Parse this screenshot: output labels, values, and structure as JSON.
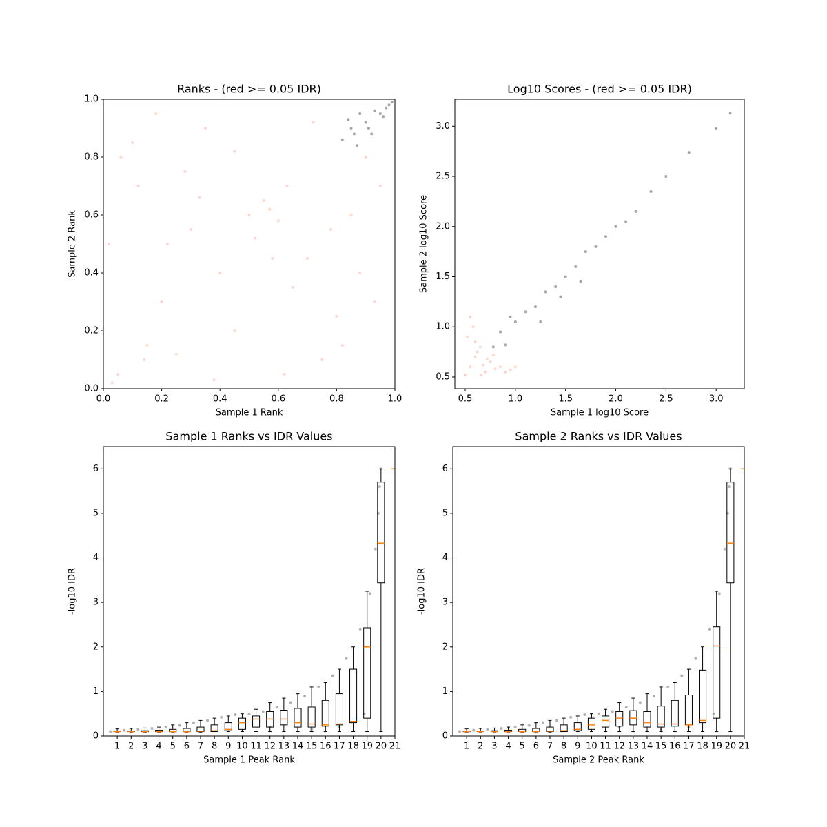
{
  "chart_data": [
    {
      "type": "scatter",
      "title": "Ranks - (red >= 0.05 IDR)",
      "xlabel": "Sample 1 Rank",
      "ylabel": "Sample 2 Rank",
      "xlim": [
        0,
        1
      ],
      "ylim": [
        0,
        1
      ],
      "xticks": [
        {
          "value": 0,
          "label": "0.0"
        },
        0.2,
        0.4,
        0.6,
        0.8,
        {
          "value": 1,
          "label": "1.0"
        }
      ],
      "yticks": [
        {
          "value": 0,
          "label": "0.0"
        },
        0.2,
        0.4,
        0.6,
        0.8,
        {
          "value": 1,
          "label": "1.0"
        }
      ],
      "series": [
        {
          "color": "#fa8c6e",
          "x": [
            0.03,
            0.05,
            0.02,
            0.06,
            0.12,
            0.15,
            0.2,
            0.25,
            0.3,
            0.35,
            0.4,
            0.45,
            0.5,
            0.55,
            0.6,
            0.62,
            0.65,
            0.7,
            0.75,
            0.8,
            0.85,
            0.9,
            0.93,
            0.1,
            0.18,
            0.22,
            0.28,
            0.33,
            0.38,
            0.52,
            0.57,
            0.58,
            0.63,
            0.72,
            0.78,
            0.82,
            0.88,
            0.95,
            0.14,
            0.45
          ],
          "values": [
            0.02,
            0.05,
            0.5,
            0.8,
            0.7,
            0.15,
            0.3,
            0.12,
            0.55,
            0.9,
            0.4,
            0.2,
            0.6,
            0.65,
            0.58,
            0.05,
            0.35,
            0.45,
            0.1,
            0.25,
            0.6,
            0.8,
            0.3,
            0.85,
            0.95,
            0.5,
            0.75,
            0.66,
            0.03,
            0.52,
            0.62,
            0.45,
            0.7,
            0.92,
            0.55,
            0.15,
            0.4,
            0.7,
            0.1,
            0.82
          ]
        },
        {
          "color": "#000000",
          "x": [
            0.82,
            0.85,
            0.87,
            0.9,
            0.92,
            0.95,
            0.97,
            0.99,
            0.84,
            0.88,
            0.91,
            0.93,
            0.96,
            0.86,
            0.98
          ],
          "values": [
            0.86,
            0.9,
            0.84,
            0.92,
            0.88,
            0.95,
            0.97,
            0.99,
            0.93,
            0.95,
            0.9,
            0.96,
            0.94,
            0.88,
            0.98
          ]
        }
      ]
    },
    {
      "type": "scatter",
      "title": "Log10 Scores - (red >= 0.05 IDR)",
      "xlabel": "Sample 1 log10 Score",
      "ylabel": "Sample 2 log10 Score",
      "xlim": [
        0.397,
        3.28
      ],
      "ylim": [
        0.383,
        3.27
      ],
      "xticks": [
        0.5,
        {
          "value": 1,
          "label": "1.0"
        },
        1.5,
        {
          "value": 2,
          "label": "2.0"
        },
        2.5,
        {
          "value": 3,
          "label": "3.0"
        }
      ],
      "yticks": [
        0.5,
        {
          "value": 1,
          "label": "1.0"
        },
        1.5,
        {
          "value": 2,
          "label": "2.0"
        },
        2.5,
        {
          "value": 3,
          "label": "3.0"
        }
      ],
      "series": [
        {
          "color": "#fa8c6e",
          "x": [
            0.5,
            0.55,
            0.6,
            0.65,
            0.7,
            0.75,
            0.8,
            0.85,
            0.9,
            0.52,
            0.58,
            0.62,
            0.68,
            0.72,
            0.78,
            0.95,
            1.0,
            0.55,
            0.6,
            0.66
          ],
          "values": [
            0.52,
            0.6,
            0.7,
            0.8,
            0.55,
            0.65,
            0.58,
            0.6,
            0.55,
            0.9,
            1.0,
            0.75,
            0.62,
            0.68,
            0.72,
            0.57,
            0.6,
            1.1,
            0.85,
            0.52
          ]
        },
        {
          "color": "#000000",
          "x": [
            0.78,
            0.85,
            0.9,
            1.0,
            1.1,
            1.2,
            1.3,
            1.4,
            1.5,
            1.6,
            1.7,
            1.8,
            1.9,
            2.0,
            2.1,
            2.2,
            2.35,
            2.5,
            2.73,
            3.0,
            3.14,
            0.95,
            1.25,
            1.45,
            1.65
          ],
          "values": [
            0.8,
            0.95,
            0.82,
            1.05,
            1.15,
            1.2,
            1.35,
            1.4,
            1.5,
            1.6,
            1.75,
            1.8,
            1.9,
            2.0,
            2.05,
            2.15,
            2.35,
            2.5,
            2.74,
            2.98,
            3.13,
            1.1,
            1.05,
            1.3,
            1.45
          ]
        }
      ]
    },
    {
      "type": "box",
      "title": "Sample 1 Ranks vs IDR Values",
      "xlabel": "Sample 1 Peak Rank",
      "ylabel": "-log10 IDR",
      "xlim": [
        0,
        21
      ],
      "ylim": [
        0,
        6.5
      ],
      "xticks": [
        1,
        2,
        3,
        4,
        5,
        6,
        7,
        8,
        9,
        10,
        11,
        12,
        13,
        14,
        15,
        16,
        17,
        18,
        19,
        20,
        21
      ],
      "yticks": [
        0,
        1,
        2,
        3,
        4,
        5,
        6
      ],
      "median_color": "#ff7f0e",
      "x": [
        1,
        2,
        3,
        4,
        5,
        6,
        7,
        8,
        9,
        10,
        11,
        12,
        13,
        14,
        15,
        16,
        17,
        18,
        19,
        20,
        21
      ],
      "whislo": [
        0.09,
        0.09,
        0.09,
        0.09,
        0.09,
        0.09,
        0.09,
        0.1,
        0.1,
        0.1,
        0.1,
        0.1,
        0.1,
        0.1,
        0.1,
        0.1,
        0.1,
        0.1,
        0.1,
        0.1,
        6
      ],
      "q1": [
        0.1,
        0.1,
        0.1,
        0.1,
        0.1,
        0.1,
        0.1,
        0.1,
        0.12,
        0.15,
        0.2,
        0.2,
        0.25,
        0.2,
        0.2,
        0.22,
        0.25,
        0.3,
        0.4,
        3.44,
        6
      ],
      "median": [
        0.1,
        0.1,
        0.1,
        0.1,
        0.1,
        0.1,
        0.11,
        0.12,
        0.15,
        0.3,
        0.38,
        0.38,
        0.38,
        0.3,
        0.27,
        0.25,
        0.27,
        0.33,
        2.0,
        4.33,
        6
      ],
      "q3": [
        0.11,
        0.11,
        0.12,
        0.13,
        0.15,
        0.17,
        0.2,
        0.25,
        0.3,
        0.4,
        0.45,
        0.55,
        0.58,
        0.62,
        0.65,
        0.8,
        0.95,
        1.5,
        2.43,
        5.7,
        6
      ],
      "whishi": [
        0.16,
        0.17,
        0.18,
        0.2,
        0.25,
        0.3,
        0.35,
        0.4,
        0.45,
        0.5,
        0.6,
        0.75,
        0.85,
        0.95,
        1.1,
        1.2,
        1.5,
        2.0,
        3.25,
        6.0,
        6
      ],
      "scatter": {
        "color": "#000000",
        "x": [
          0.5,
          1.5,
          2.5,
          3.5,
          4.5,
          5.5,
          6.5,
          7.5,
          8.5,
          9.5,
          10.5,
          11.5,
          12.5,
          13.5,
          14.5,
          15.5,
          16.5,
          17.5,
          18.5,
          19.2,
          19.6,
          19.8,
          19.9,
          20.0,
          12,
          15,
          17,
          18.8
        ],
        "values": [
          0.1,
          0.13,
          0.15,
          0.17,
          0.2,
          0.24,
          0.3,
          0.35,
          0.42,
          0.48,
          0.5,
          0.55,
          0.65,
          0.75,
          0.9,
          1.1,
          1.35,
          1.75,
          2.4,
          3.2,
          4.2,
          5.0,
          5.6,
          6.0,
          0.2,
          0.15,
          0.2,
          0.5
        ]
      }
    },
    {
      "type": "box",
      "title": "Sample 2 Ranks vs IDR Values",
      "xlabel": "Sample 2 Peak Rank",
      "ylabel": "-log10 IDR",
      "xlim": [
        0,
        21
      ],
      "ylim": [
        0,
        6.5
      ],
      "xticks": [
        1,
        2,
        3,
        4,
        5,
        6,
        7,
        8,
        9,
        10,
        11,
        12,
        13,
        14,
        15,
        16,
        17,
        18,
        19,
        20,
        21
      ],
      "yticks": [
        0,
        1,
        2,
        3,
        4,
        5,
        6
      ],
      "median_color": "#ff7f0e",
      "x": [
        1,
        2,
        3,
        4,
        5,
        6,
        7,
        8,
        9,
        10,
        11,
        12,
        13,
        14,
        15,
        16,
        17,
        18,
        19,
        20,
        21
      ],
      "whislo": [
        0.09,
        0.09,
        0.09,
        0.09,
        0.09,
        0.09,
        0.09,
        0.1,
        0.1,
        0.1,
        0.1,
        0.1,
        0.1,
        0.1,
        0.1,
        0.1,
        0.1,
        0.1,
        0.1,
        0.1,
        6
      ],
      "q1": [
        0.1,
        0.1,
        0.1,
        0.1,
        0.1,
        0.1,
        0.1,
        0.1,
        0.12,
        0.15,
        0.2,
        0.22,
        0.25,
        0.2,
        0.2,
        0.22,
        0.25,
        0.3,
        0.4,
        3.44,
        6
      ],
      "median": [
        0.1,
        0.1,
        0.1,
        0.1,
        0.1,
        0.1,
        0.11,
        0.12,
        0.15,
        0.25,
        0.35,
        0.4,
        0.4,
        0.3,
        0.27,
        0.27,
        0.25,
        0.35,
        2.02,
        4.33,
        6
      ],
      "q3": [
        0.11,
        0.11,
        0.12,
        0.13,
        0.15,
        0.17,
        0.2,
        0.25,
        0.3,
        0.4,
        0.45,
        0.55,
        0.57,
        0.55,
        0.67,
        0.8,
        0.92,
        1.48,
        2.45,
        5.7,
        6
      ],
      "whishi": [
        0.16,
        0.17,
        0.18,
        0.2,
        0.25,
        0.3,
        0.35,
        0.4,
        0.45,
        0.5,
        0.6,
        0.75,
        0.85,
        0.95,
        1.1,
        1.2,
        1.5,
        2.0,
        3.25,
        6.0,
        6
      ],
      "scatter": {
        "color": "#000000",
        "x": [
          0.5,
          1.5,
          2.5,
          3.5,
          4.5,
          5.5,
          6.5,
          7.5,
          8.5,
          9.5,
          10.5,
          11.5,
          12.5,
          13.5,
          14.5,
          15.5,
          16.5,
          17.5,
          18.5,
          19.2,
          19.6,
          19.8,
          19.9,
          20.0,
          12,
          15,
          17,
          18.8
        ],
        "values": [
          0.1,
          0.13,
          0.15,
          0.17,
          0.2,
          0.24,
          0.3,
          0.35,
          0.42,
          0.48,
          0.5,
          0.55,
          0.65,
          0.75,
          0.9,
          1.1,
          1.35,
          1.75,
          2.4,
          3.2,
          4.2,
          5.0,
          5.6,
          6.0,
          0.2,
          0.15,
          0.2,
          0.5
        ]
      }
    }
  ]
}
